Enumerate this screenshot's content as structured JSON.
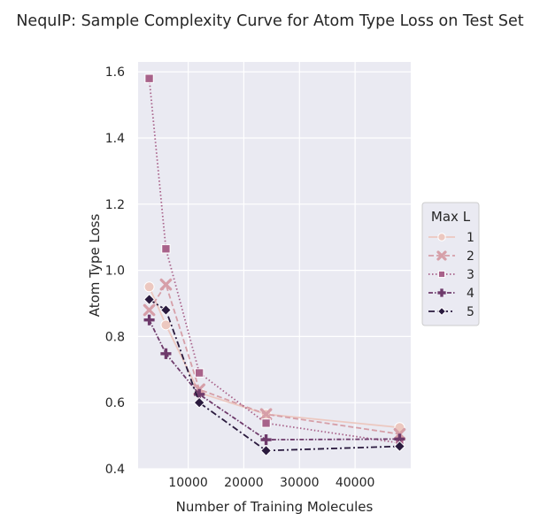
{
  "chart_data": {
    "type": "line",
    "title": "NequIP: Sample Complexity Curve for Atom Type Loss on Test Set",
    "xlabel": "Number of Training Molecules",
    "ylabel": "Atom Type Loss",
    "xlim": [
      1000,
      50000
    ],
    "ylim": [
      0.4,
      1.63
    ],
    "xticks": [
      10000,
      20000,
      30000,
      40000
    ],
    "xtick_labels": [
      "10000",
      "20000",
      "30000",
      "40000"
    ],
    "yticks": [
      0.4,
      0.6,
      0.8,
      1.0,
      1.2,
      1.4,
      1.6
    ],
    "ytick_labels": [
      "0.4",
      "0.6",
      "0.8",
      "1.0",
      "1.2",
      "1.4",
      "1.6"
    ],
    "grid": true,
    "legend_title": "Max L",
    "legend_position": "right",
    "x": [
      3000,
      6000,
      12000,
      24000,
      48000
    ],
    "series": [
      {
        "name": "1",
        "values": [
          0.95,
          0.835,
          0.63,
          0.565,
          0.525
        ],
        "color": "#ecc8c0",
        "dash": "",
        "marker": "circle"
      },
      {
        "name": "2",
        "values": [
          0.88,
          0.957,
          0.64,
          0.565,
          0.505
        ],
        "color": "#d69fa8",
        "dash": "6,3",
        "marker": "x"
      },
      {
        "name": "3",
        "values": [
          1.58,
          1.065,
          0.69,
          0.538,
          0.478
        ],
        "color": "#a8628a",
        "dash": "1.5,2.5",
        "marker": "square"
      },
      {
        "name": "4",
        "values": [
          0.85,
          0.748,
          0.625,
          0.488,
          0.49
        ],
        "color": "#6e3a6b",
        "dash": "5,2,1.5,2",
        "marker": "plus"
      },
      {
        "name": "5",
        "values": [
          0.912,
          0.88,
          0.6,
          0.455,
          0.468
        ],
        "color": "#2a1a3e",
        "dash": "7,3,2,3",
        "marker": "diamond"
      }
    ]
  }
}
